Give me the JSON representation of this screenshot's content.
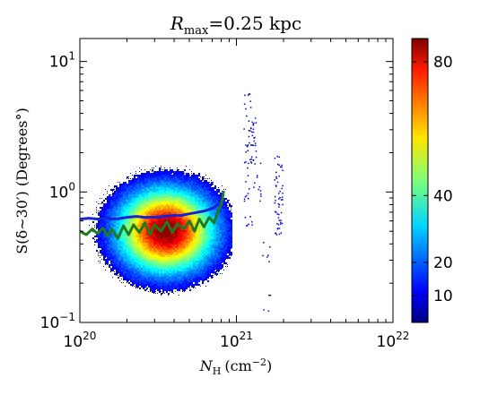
{
  "chart_data": {
    "type": "heatmap",
    "title": "R_max =0.25 kpc",
    "title_parts": {
      "symbol": "R",
      "subscript": "max",
      "rest": "=0.25 kpc"
    },
    "xlabel": "N_H (cm^-2)",
    "xlabel_parts": {
      "symbol": "N",
      "subscript": "H",
      "unit": "(cm",
      "unit_sup": "−2",
      "unit_close": ")"
    },
    "ylabel": "S(δ∼30′) (Degrees°)",
    "x_scale": "log",
    "y_scale": "log",
    "xlim": [
      1e+20,
      1e+22
    ],
    "ylim": [
      0.1,
      15
    ],
    "x_ticks": [
      {
        "value": 1e+20,
        "base": "10",
        "exp": "20"
      },
      {
        "value": 1e+21,
        "base": "10",
        "exp": "21"
      },
      {
        "value": 1e+22,
        "base": "10",
        "exp": "22"
      }
    ],
    "y_ticks": [
      {
        "value": 0.1,
        "base": "10",
        "exp": "−1"
      },
      {
        "value": 1,
        "base": "10",
        "exp": "0"
      },
      {
        "value": 10,
        "base": "10",
        "exp": "1"
      }
    ],
    "colorbar": {
      "colormap": "jet",
      "min": 2,
      "max": 87,
      "ticks": [
        {
          "value": 10,
          "label": "10"
        },
        {
          "value": 20,
          "label": "20"
        },
        {
          "value": 40,
          "label": "40"
        },
        {
          "value": 80,
          "label": "80"
        }
      ]
    },
    "density_peak": {
      "x": 3.5e+20,
      "y": 0.48,
      "count": 87
    },
    "series": [
      {
        "color": "#1a22d6",
        "x": [
          1e+20,
          1.15e+20,
          1.3e+20,
          1.5e+20,
          1.7e+20,
          2e+20,
          2.3e+20,
          2.6e+20,
          3e+20,
          3.4e+20,
          3.9e+20,
          4.4e+20,
          5e+20,
          5.7e+20,
          6.4e+20,
          7.2e+20,
          7.8e+20,
          8.3e+20
        ],
        "y": [
          0.62,
          0.63,
          0.62,
          0.63,
          0.62,
          0.64,
          0.65,
          0.64,
          0.64,
          0.65,
          0.66,
          0.66,
          0.68,
          0.7,
          0.72,
          0.76,
          0.82,
          0.88
        ]
      },
      {
        "color": "#1f7a1f",
        "x": [
          1e+20,
          1.1e+20,
          1.2e+20,
          1.3e+20,
          1.4e+20,
          1.5e+20,
          1.6e+20,
          1.75e+20,
          1.9e+20,
          2.05e+20,
          2.2e+20,
          2.4e+20,
          2.6e+20,
          2.8e+20,
          3e+20,
          3.3e+20,
          3.6e+20,
          3.9e+20,
          4.2e+20,
          4.6e+20,
          5e+20,
          5.4e+20,
          5.8e+20,
          6.2e+20,
          6.7e+20,
          7.2e+20,
          7.6e+20,
          8e+20,
          8.3e+20
        ],
        "y": [
          0.5,
          0.47,
          0.52,
          0.48,
          0.53,
          0.46,
          0.52,
          0.44,
          0.55,
          0.47,
          0.56,
          0.49,
          0.58,
          0.47,
          0.56,
          0.5,
          0.59,
          0.49,
          0.57,
          0.52,
          0.6,
          0.5,
          0.62,
          0.54,
          0.64,
          0.58,
          0.7,
          0.8,
          1.02
        ]
      }
    ]
  }
}
